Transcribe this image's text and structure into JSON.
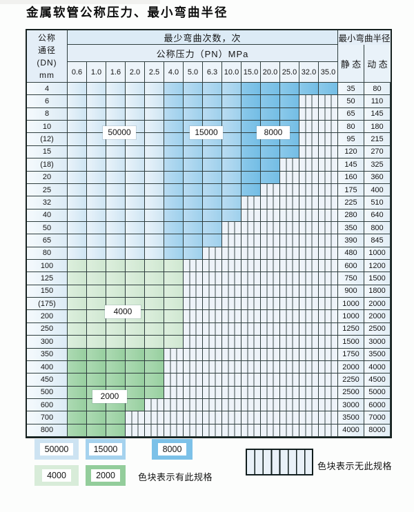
{
  "title": "金属软管公称压力、最小弯曲半径",
  "table": {
    "dn_header_lines": [
      "公称",
      "通径",
      "(DN)",
      "mm"
    ],
    "bend_times_header": "最少弯曲次数，次",
    "pressure_header": "公称压力（PN）MPa",
    "min_radius_header": "最小弯曲半径",
    "static_header": "静 态",
    "dynamic_header": "动 态",
    "pressures": [
      "0.6",
      "1.0",
      "1.6",
      "2.0",
      "2.5",
      "4.0",
      "5.0",
      "6.3",
      "10.0",
      "15.0",
      "20.0",
      "25.0",
      "32.0",
      "35.0"
    ],
    "rows": [
      {
        "dn": "4",
        "band": "blue",
        "colored": 14,
        "pn_max": "35.0",
        "static": "35",
        "dynamic": "80"
      },
      {
        "dn": "6",
        "band": "blue",
        "colored": 12,
        "pn_max": "25.0",
        "static": "50",
        "dynamic": "110"
      },
      {
        "dn": "8",
        "band": "blue",
        "colored": 12,
        "pn_max": "25.0",
        "static": "65",
        "dynamic": "145"
      },
      {
        "dn": "10",
        "band": "blue",
        "colored": 12,
        "pn_max": "25.0",
        "static": "80",
        "dynamic": "180"
      },
      {
        "dn": "(12)",
        "band": "blue",
        "colored": 12,
        "pn_max": "25.0",
        "static": "95",
        "dynamic": "215"
      },
      {
        "dn": "15",
        "band": "blue",
        "colored": 12,
        "pn_max": "25.0",
        "static": "120",
        "dynamic": "270"
      },
      {
        "dn": "(18)",
        "band": "blue",
        "colored": 11,
        "pn_max": "20.0",
        "static": "145",
        "dynamic": "325"
      },
      {
        "dn": "20",
        "band": "blue",
        "colored": 11,
        "pn_max": "20.0",
        "static": "160",
        "dynamic": "360"
      },
      {
        "dn": "25",
        "band": "blue",
        "colored": 10,
        "pn_max": "15.0",
        "static": "175",
        "dynamic": "400"
      },
      {
        "dn": "32",
        "band": "blue",
        "colored": 9,
        "pn_max": "10.0",
        "static": "225",
        "dynamic": "510"
      },
      {
        "dn": "40",
        "band": "blue",
        "colored": 9,
        "pn_max": "10.0",
        "static": "280",
        "dynamic": "640"
      },
      {
        "dn": "50",
        "band": "blue",
        "colored": 8,
        "pn_max": "6.3",
        "static": "350",
        "dynamic": "800"
      },
      {
        "dn": "65",
        "band": "blue",
        "colored": 8,
        "pn_max": "6.3",
        "static": "390",
        "dynamic": "845"
      },
      {
        "dn": "80",
        "band": "blue",
        "colored": 7,
        "pn_max": "5.0",
        "static": "480",
        "dynamic": "1000"
      },
      {
        "dn": "100",
        "band": "light-green",
        "colored": 6,
        "pn_max": "4.0",
        "static": "600",
        "dynamic": "1200"
      },
      {
        "dn": "125",
        "band": "light-green",
        "colored": 6,
        "pn_max": "4.0",
        "static": "750",
        "dynamic": "1500"
      },
      {
        "dn": "150",
        "band": "light-green",
        "colored": 6,
        "pn_max": "4.0",
        "static": "900",
        "dynamic": "1800"
      },
      {
        "dn": "(175)",
        "band": "light-green",
        "colored": 6,
        "pn_max": "4.0",
        "static": "1000",
        "dynamic": "2000"
      },
      {
        "dn": "200",
        "band": "light-green",
        "colored": 6,
        "pn_max": "4.0",
        "static": "1000",
        "dynamic": "2000"
      },
      {
        "dn": "250",
        "band": "light-green",
        "colored": 6,
        "pn_max": "4.0",
        "static": "1250",
        "dynamic": "2500"
      },
      {
        "dn": "300",
        "band": "light-green",
        "colored": 6,
        "pn_max": "4.0",
        "static": "1500",
        "dynamic": "3000"
      },
      {
        "dn": "350",
        "band": "dark-green",
        "colored": 5,
        "pn_max": "2.5",
        "static": "1750",
        "dynamic": "3500"
      },
      {
        "dn": "400",
        "band": "dark-green",
        "colored": 5,
        "pn_max": "2.5",
        "static": "2000",
        "dynamic": "4000"
      },
      {
        "dn": "450",
        "band": "dark-green",
        "colored": 5,
        "pn_max": "2.5",
        "static": "2250",
        "dynamic": "4500"
      },
      {
        "dn": "500",
        "band": "dark-green",
        "colored": 5,
        "pn_max": "2.5",
        "static": "2500",
        "dynamic": "5000"
      },
      {
        "dn": "600",
        "band": "dark-green",
        "colored": 4,
        "pn_max": "2.0",
        "static": "3000",
        "dynamic": "6000"
      },
      {
        "dn": "700",
        "band": "dark-green",
        "colored": 3,
        "pn_max": "1.6",
        "static": "3500",
        "dynamic": "7000"
      },
      {
        "dn": "800",
        "band": "dark-green",
        "colored": 3,
        "pn_max": "1.6",
        "static": "4000",
        "dynamic": "8000"
      }
    ]
  },
  "cycle_labels": {
    "b50000": "50000",
    "b15000": "15000",
    "b8000": "8000",
    "g4000": "4000",
    "g2000": "2000"
  },
  "legend": {
    "items": [
      {
        "label": "50000",
        "color": "#cde3f2"
      },
      {
        "label": "15000",
        "color": "#a5d2ee"
      },
      {
        "label": "8000",
        "color": "#7cc1e8"
      },
      {
        "label": "4000",
        "color": "#d8ecd9"
      },
      {
        "label": "2000",
        "color": "#93cd9b"
      }
    ],
    "has_spec_note": "色块表示有此规格",
    "no_spec_note": "色块表示无此规格"
  },
  "colors": {
    "pale_blue_50000": "#d9eaf6",
    "medium_blue_15000": "#abd5ef",
    "dark_blue_8000": "#7cc2e8",
    "light_green_4000": "#d7ebd8",
    "dark_green_2000": "#a2d4aa",
    "grid_line": "#2d3c3c"
  }
}
